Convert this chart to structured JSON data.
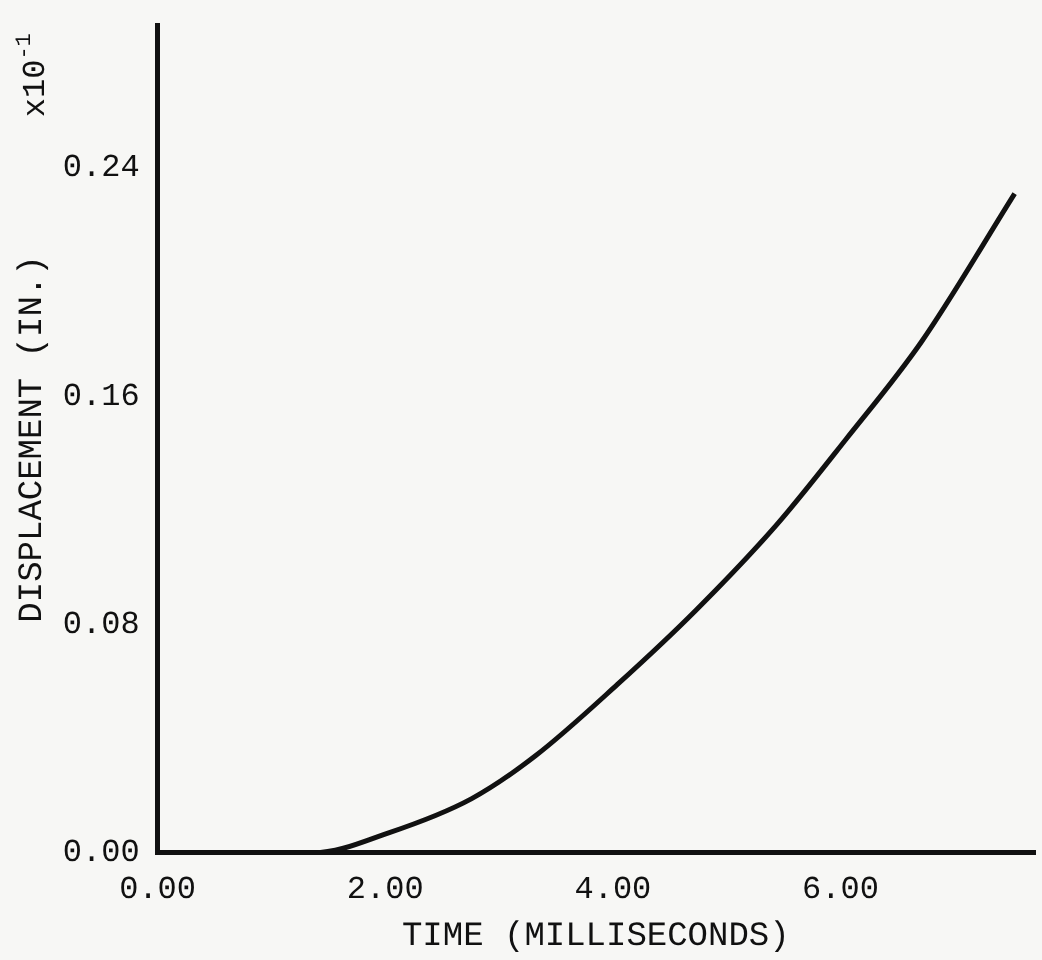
{
  "chart_data": {
    "type": "line",
    "xlabel": "TIME (MILLISECONDS)",
    "ylabel": "DISPLACEMENT (IN.)",
    "annotations": [
      "x10$^{-1}$"
    ],
    "x": [
      0,
      1.37,
      2.03,
      2.76,
      3.32,
      4.04,
      4.73,
      5.44,
      6.05,
      6.71,
      7.53
    ],
    "series": [
      {
        "color": "#111111",
        "values": [
          0,
          0,
          0.007,
          0.019,
          0.034,
          0.059,
          0.085,
          0.115,
          0.145,
          0.179,
          0.231
        ]
      }
    ],
    "xlim": [
      0,
      7.7
    ],
    "ylim": [
      0,
      0.29
    ],
    "xticks": [
      {
        "value": 0,
        "label": "0.00"
      },
      {
        "value": 2,
        "label": "2.00"
      },
      {
        "value": 4,
        "label": "4.00"
      },
      {
        "value": 6,
        "label": "6.00"
      }
    ],
    "yticks": [
      {
        "value": 0,
        "label": "0.00"
      },
      {
        "value": 0.08,
        "label": "0.08"
      },
      {
        "value": 0.16,
        "label": "0.16"
      },
      {
        "value": 0.24,
        "label": "0.24"
      }
    ],
    "grid": false,
    "legend": false,
    "marker": "none",
    "line_style": "solid"
  }
}
